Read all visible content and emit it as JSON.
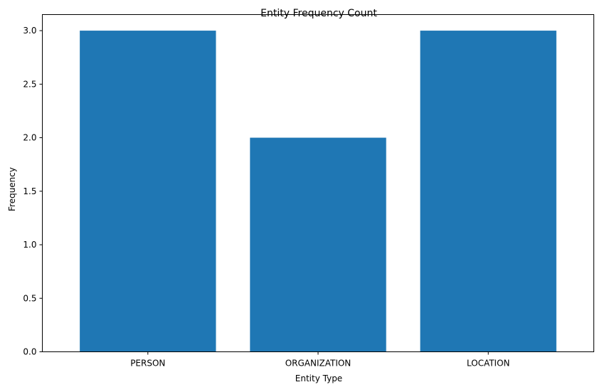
{
  "chart_data": {
    "type": "bar",
    "title": "Entity Frequency Count",
    "xlabel": "Entity Type",
    "ylabel": "Frequency",
    "categories": [
      "PERSON",
      "ORGANIZATION",
      "LOCATION"
    ],
    "values": [
      3,
      2,
      3
    ],
    "ylim": [
      0,
      3.15
    ],
    "yticks": [
      "0.0",
      "0.5",
      "1.0",
      "1.5",
      "2.0",
      "2.5",
      "3.0"
    ],
    "bar_color": "#1f77b4",
    "grid": false
  }
}
